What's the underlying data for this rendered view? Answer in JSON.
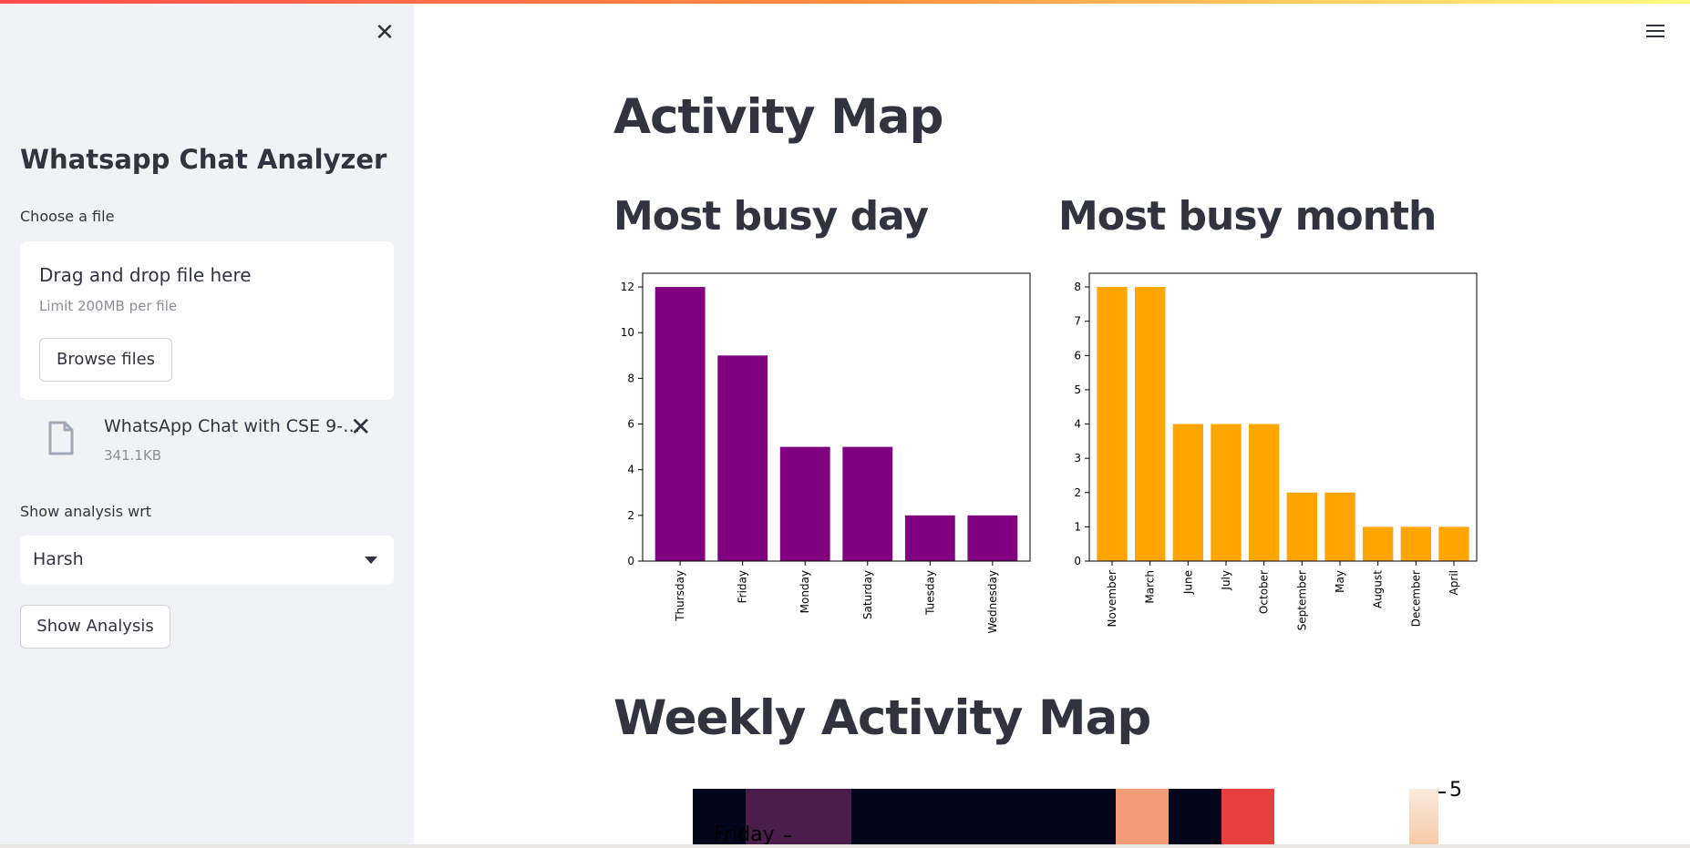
{
  "sidebar": {
    "app_title": "Whatsapp Chat Analyzer",
    "file_label": "Choose a file",
    "drop_text": "Drag and drop file here",
    "drop_limit": "Limit 200MB per file",
    "browse_label": "Browse files",
    "uploaded_file": {
      "name": "WhatsApp Chat with CSE 9-…",
      "size": "341.1KB"
    },
    "select_label": "Show analysis wrt",
    "select_value": "Harsh",
    "show_button": "Show Analysis"
  },
  "main": {
    "title": "Activity Map",
    "busy_day_title": "Most busy day",
    "busy_month_title": "Most busy month",
    "weekly_title": "Weekly Activity Map",
    "heatmap_row_label": "Friday",
    "heatmap_colorbar_label": "5"
  },
  "colors": {
    "day_bars": "#800080",
    "month_bars": "#ffa500",
    "heatmap_cells": [
      "#03051a",
      "#4b1d4a",
      "#4b1d4a",
      "#03051a",
      "#03051a",
      "#03051a",
      "#03051a",
      "#03051a",
      "#f39b76",
      "#03051a",
      "#e83f3f"
    ]
  },
  "chart_data": [
    {
      "type": "bar",
      "categories": [
        "Thursday",
        "Friday",
        "Monday",
        "Saturday",
        "Tuesday",
        "Wednesday"
      ],
      "values": [
        12,
        9,
        5,
        5,
        2,
        2
      ],
      "title": "",
      "xlabel": "",
      "ylabel": "",
      "ylim": [
        0,
        12.6
      ],
      "yticks": [
        0,
        2,
        4,
        6,
        8,
        10,
        12
      ],
      "color": "#800080"
    },
    {
      "type": "bar",
      "categories": [
        "November",
        "March",
        "June",
        "July",
        "October",
        "September",
        "May",
        "August",
        "December",
        "April"
      ],
      "values": [
        8,
        8,
        4,
        4,
        4,
        2,
        2,
        1,
        1,
        1
      ],
      "title": "",
      "xlabel": "",
      "ylabel": "",
      "ylim": [
        0,
        8.4
      ],
      "yticks": [
        0,
        1,
        2,
        3,
        4,
        5,
        6,
        7,
        8
      ],
      "color": "#ffa500"
    }
  ]
}
